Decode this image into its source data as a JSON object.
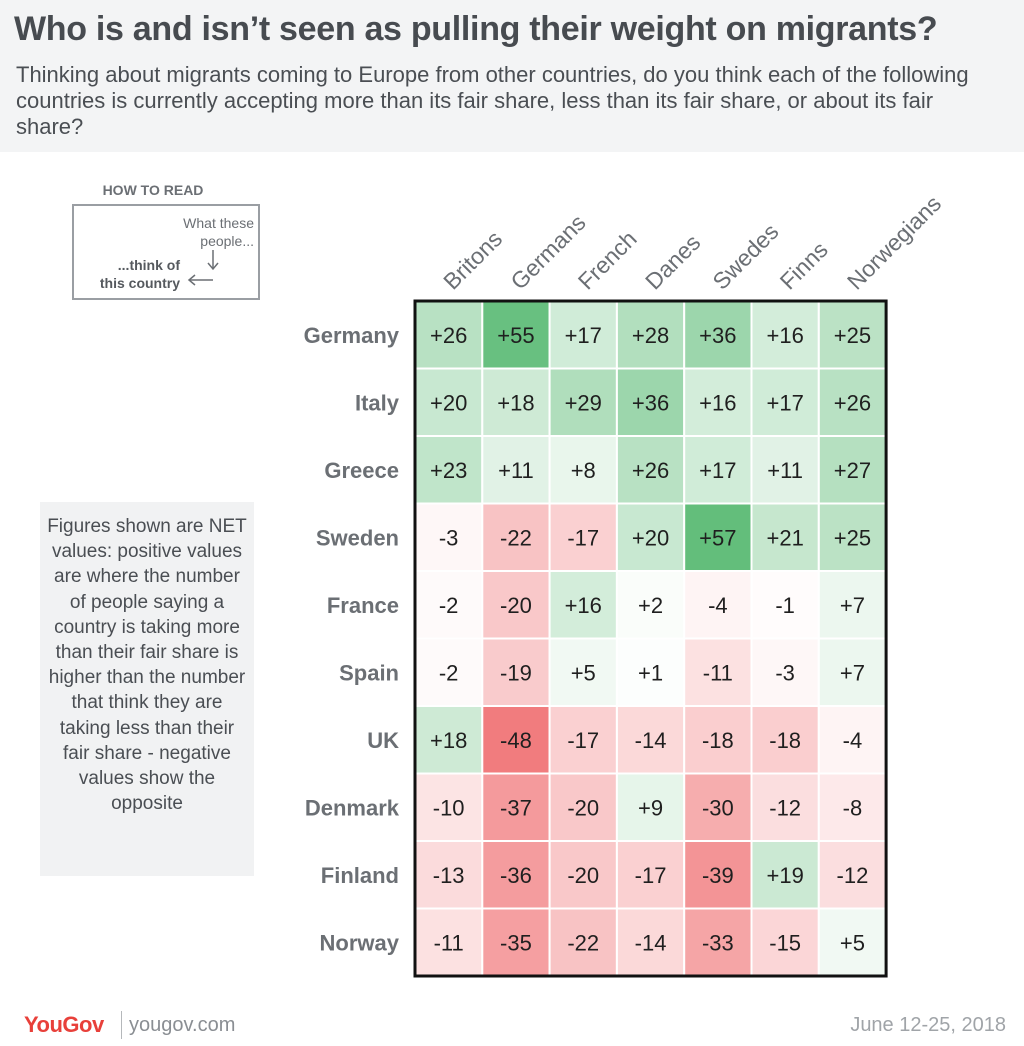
{
  "header": {
    "title": "Who is and isn’t seen as pulling their weight on migrants?",
    "subtitle": "Thinking about migrants coming to Europe from other countries, do you think each of the following countries is currently accepting more than its fair share, less than its fair share, or about its fair share?"
  },
  "how_to_read": {
    "label": "HOW TO READ",
    "people_line1": "What these",
    "people_line2": "people...",
    "country_line1": "...think of",
    "country_line2": "this country"
  },
  "note": "Figures shown are NET values: positive values are where the number of people saying a country is taking more than their fair share is higher than the number that think they are taking less than their fair share - negative values show the opposite",
  "chart_data": {
    "type": "heatmap",
    "columns": [
      "Britons",
      "Germans",
      "French",
      "Danes",
      "Swedes",
      "Finns",
      "Norwegians"
    ],
    "rows": [
      "Germany",
      "Italy",
      "Greece",
      "Sweden",
      "France",
      "Spain",
      "UK",
      "Denmark",
      "Finland",
      "Norway"
    ],
    "values": [
      [
        26,
        55,
        17,
        28,
        36,
        16,
        25
      ],
      [
        20,
        18,
        29,
        36,
        16,
        17,
        26
      ],
      [
        23,
        11,
        8,
        26,
        17,
        11,
        27
      ],
      [
        -3,
        -22,
        -17,
        20,
        57,
        21,
        25
      ],
      [
        -2,
        -20,
        16,
        2,
        -4,
        -1,
        7
      ],
      [
        -2,
        -19,
        5,
        1,
        -11,
        -3,
        7
      ],
      [
        18,
        -48,
        -17,
        -14,
        -18,
        -18,
        -4
      ],
      [
        -10,
        -37,
        -20,
        9,
        -30,
        -12,
        -8
      ],
      [
        -13,
        -36,
        -20,
        -17,
        -39,
        19,
        -12
      ],
      [
        -11,
        -35,
        -22,
        -14,
        -33,
        -15,
        5
      ]
    ],
    "positive_color": "#63be7b",
    "negative_color": "#ee6366",
    "neutral_color": "#ffffff",
    "color_max": 57
  },
  "footer": {
    "brand": "YouGov",
    "site": "yougov.com",
    "date": "June 12-25, 2018"
  }
}
